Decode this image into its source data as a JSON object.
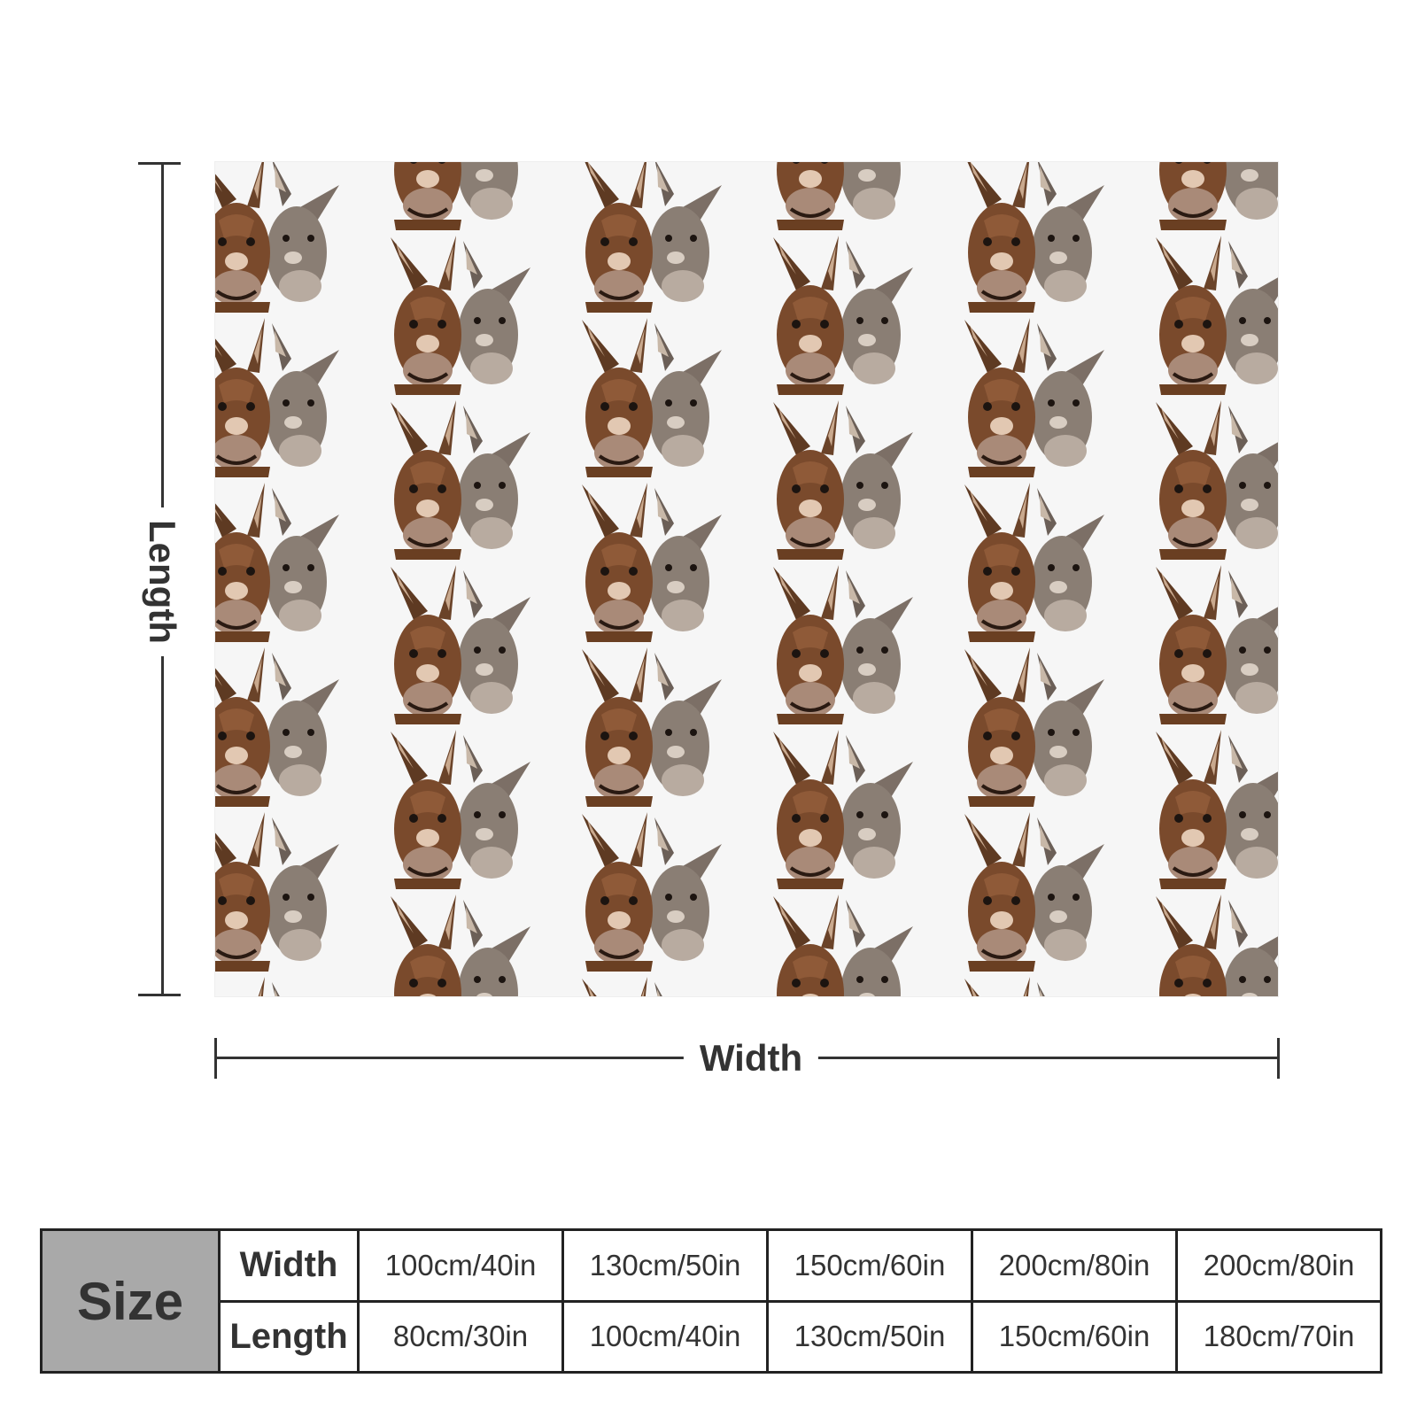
{
  "product_image": {
    "pattern_icon": "donkey-pair-icon",
    "background_color": "#f6f6f6",
    "brown_donkey_color": "#7a4a2c",
    "grey_donkey_color": "#8a7e74"
  },
  "dimensions": {
    "length_label": "Length",
    "width_label": "Width"
  },
  "size_table": {
    "size_label": "Size",
    "width_label": "Width",
    "length_label": "Length",
    "widths": [
      "100cm/40in",
      "130cm/50in",
      "150cm/60in",
      "200cm/80in",
      "200cm/80in"
    ],
    "lengths": [
      "80cm/30in",
      "100cm/40in",
      "130cm/50in",
      "150cm/60in",
      "180cm/70in"
    ]
  }
}
